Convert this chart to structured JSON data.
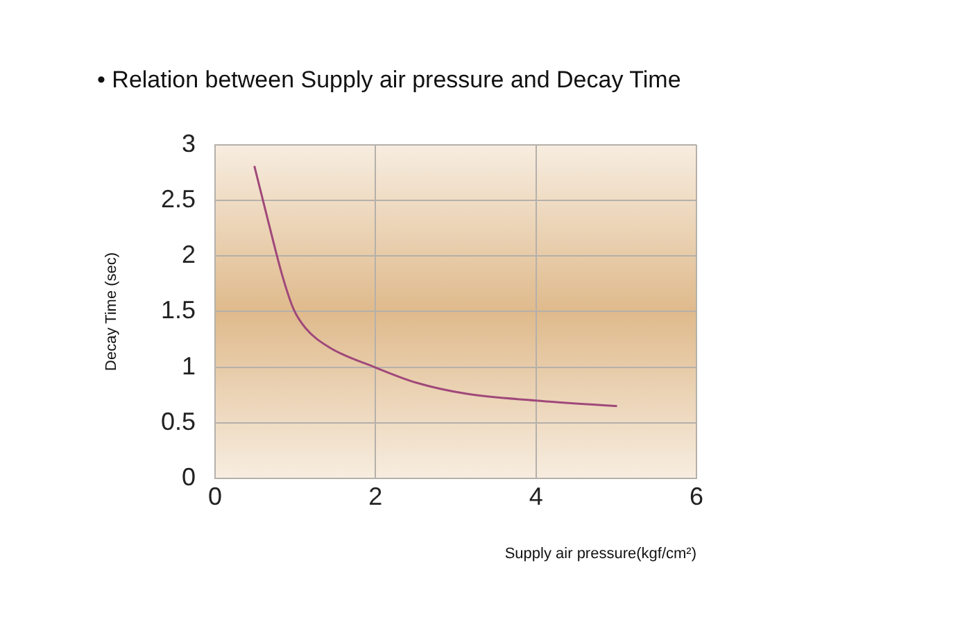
{
  "chart_data": {
    "type": "line",
    "title": "• Relation between Supply air pressure and Decay Time",
    "xlabel": "Supply air pressure(kgf/cm²)",
    "ylabel": "Decay Time (sec)",
    "x": [
      0.49,
      0.67,
      0.84,
      0.98,
      1.13,
      1.42,
      1.99,
      2.51,
      3.14,
      4.0,
      5.01
    ],
    "series": [
      {
        "color": "#a0487a",
        "values": [
          2.81,
          2.29,
          1.82,
          1.52,
          1.35,
          1.18,
          1.0,
          0.86,
          0.76,
          0.7,
          0.65
        ]
      }
    ],
    "xlim": [
      0,
      6
    ],
    "xticks": [
      0,
      2,
      4,
      6
    ],
    "ylim": [
      0,
      3
    ],
    "yticks": [
      0,
      0.5,
      1,
      1.5,
      2,
      2.5,
      3
    ],
    "grid": true,
    "legend": false,
    "marker": "none",
    "line_style": "solid"
  }
}
